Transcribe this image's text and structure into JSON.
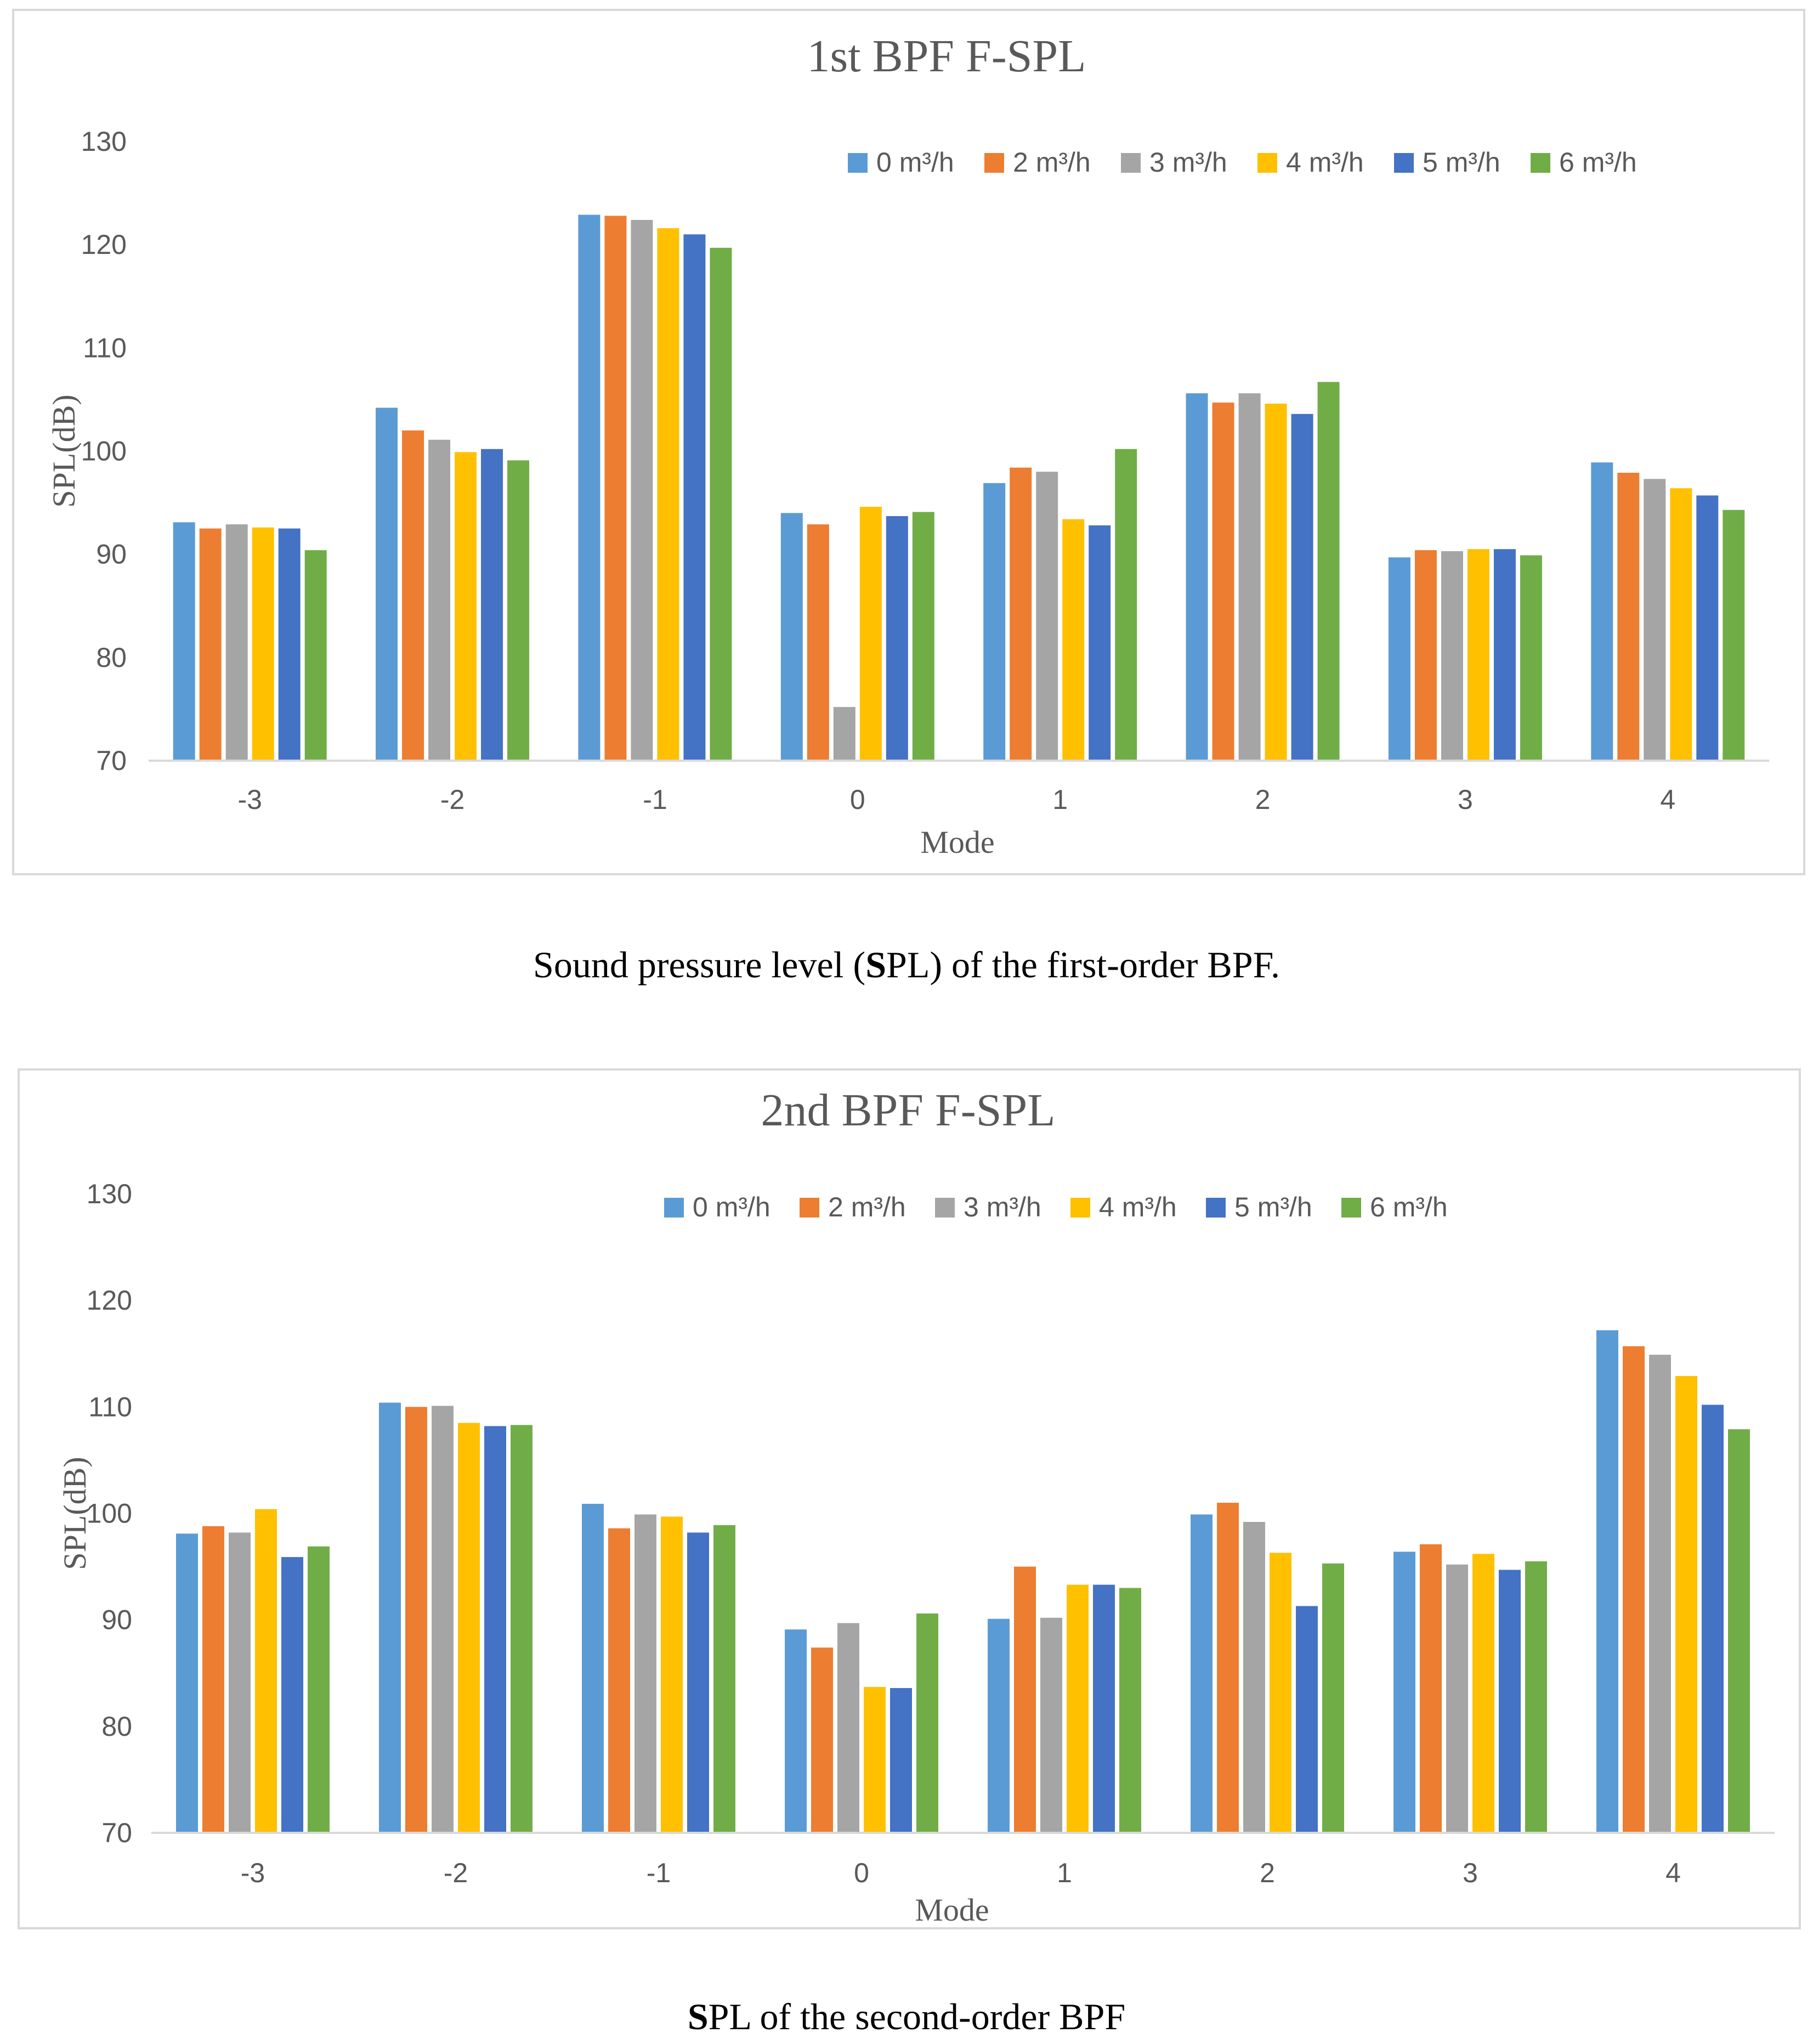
{
  "colors": [
    "#5B9BD5",
    "#ED7D31",
    "#A5A5A5",
    "#FFC000",
    "#4472C4",
    "#70AD47"
  ],
  "chart_data": [
    {
      "type": "bar",
      "title": "1st BPF F-SPL",
      "xlabel": "Mode",
      "ylabel": "SPL(dB)",
      "ylim": [
        70,
        130
      ],
      "yticks": [
        "70",
        "80",
        "90",
        "100",
        "110",
        "120",
        "130"
      ],
      "categories": [
        "-3",
        "-2",
        "-1",
        "0",
        "1",
        "2",
        "3",
        "4"
      ],
      "legend_position": "top-right",
      "series": [
        {
          "name": "0 m³/h",
          "values": [
            93.1,
            104.2,
            122.9,
            94.0,
            96.9,
            105.6,
            89.7,
            98.9
          ]
        },
        {
          "name": "2 m³/h",
          "values": [
            92.5,
            102.0,
            122.8,
            92.9,
            98.4,
            104.7,
            90.4,
            97.9
          ]
        },
        {
          "name": "3 m³/h",
          "values": [
            92.9,
            101.1,
            122.4,
            75.2,
            98.0,
            105.6,
            90.3,
            97.3
          ]
        },
        {
          "name": "4 m³/h",
          "values": [
            92.6,
            99.9,
            121.6,
            94.6,
            93.4,
            104.6,
            90.5,
            96.4
          ]
        },
        {
          "name": "5 m³/h",
          "values": [
            92.5,
            100.2,
            121.0,
            93.7,
            92.8,
            103.6,
            90.5,
            95.7
          ]
        },
        {
          "name": "6 m³/h",
          "values": [
            90.4,
            99.1,
            119.7,
            94.1,
            100.2,
            106.7,
            89.9,
            94.3
          ]
        }
      ]
    },
    {
      "type": "bar",
      "title": "2nd BPF F-SPL",
      "xlabel": "Mode",
      "ylabel": "SPL(dB)",
      "ylim": [
        70,
        130
      ],
      "yticks": [
        "70",
        "80",
        "90",
        "100",
        "110",
        "120",
        "130"
      ],
      "categories": [
        "-3",
        "-2",
        "-1",
        "0",
        "1",
        "2",
        "3",
        "4"
      ],
      "legend_position": "top-center",
      "series": [
        {
          "name": "0 m³/h",
          "values": [
            98.1,
            110.4,
            100.9,
            89.1,
            90.1,
            99.9,
            96.4,
            117.2
          ]
        },
        {
          "name": "2 m³/h",
          "values": [
            98.8,
            110.0,
            98.6,
            87.4,
            95.0,
            101.0,
            97.1,
            115.7
          ]
        },
        {
          "name": "3 m³/h",
          "values": [
            98.2,
            110.1,
            99.9,
            89.7,
            90.2,
            99.2,
            95.2,
            114.9
          ]
        },
        {
          "name": "4 m³/h",
          "values": [
            100.4,
            108.5,
            99.7,
            83.7,
            93.3,
            96.3,
            96.2,
            112.9
          ]
        },
        {
          "name": "5 m³/h",
          "values": [
            95.9,
            108.2,
            98.2,
            83.6,
            93.3,
            91.3,
            94.7,
            110.2
          ]
        },
        {
          "name": "6 m³/h",
          "values": [
            96.9,
            108.3,
            98.9,
            90.6,
            93.0,
            95.3,
            95.5,
            107.9
          ]
        }
      ]
    }
  ],
  "captions": {
    "first_bold": "S",
    "first_rest_a": "Sound pressure level (",
    "first_rest_b": "PL) of the first-order BPF.",
    "second_bold": "S",
    "second_rest": "PL of the second-order BPF"
  }
}
